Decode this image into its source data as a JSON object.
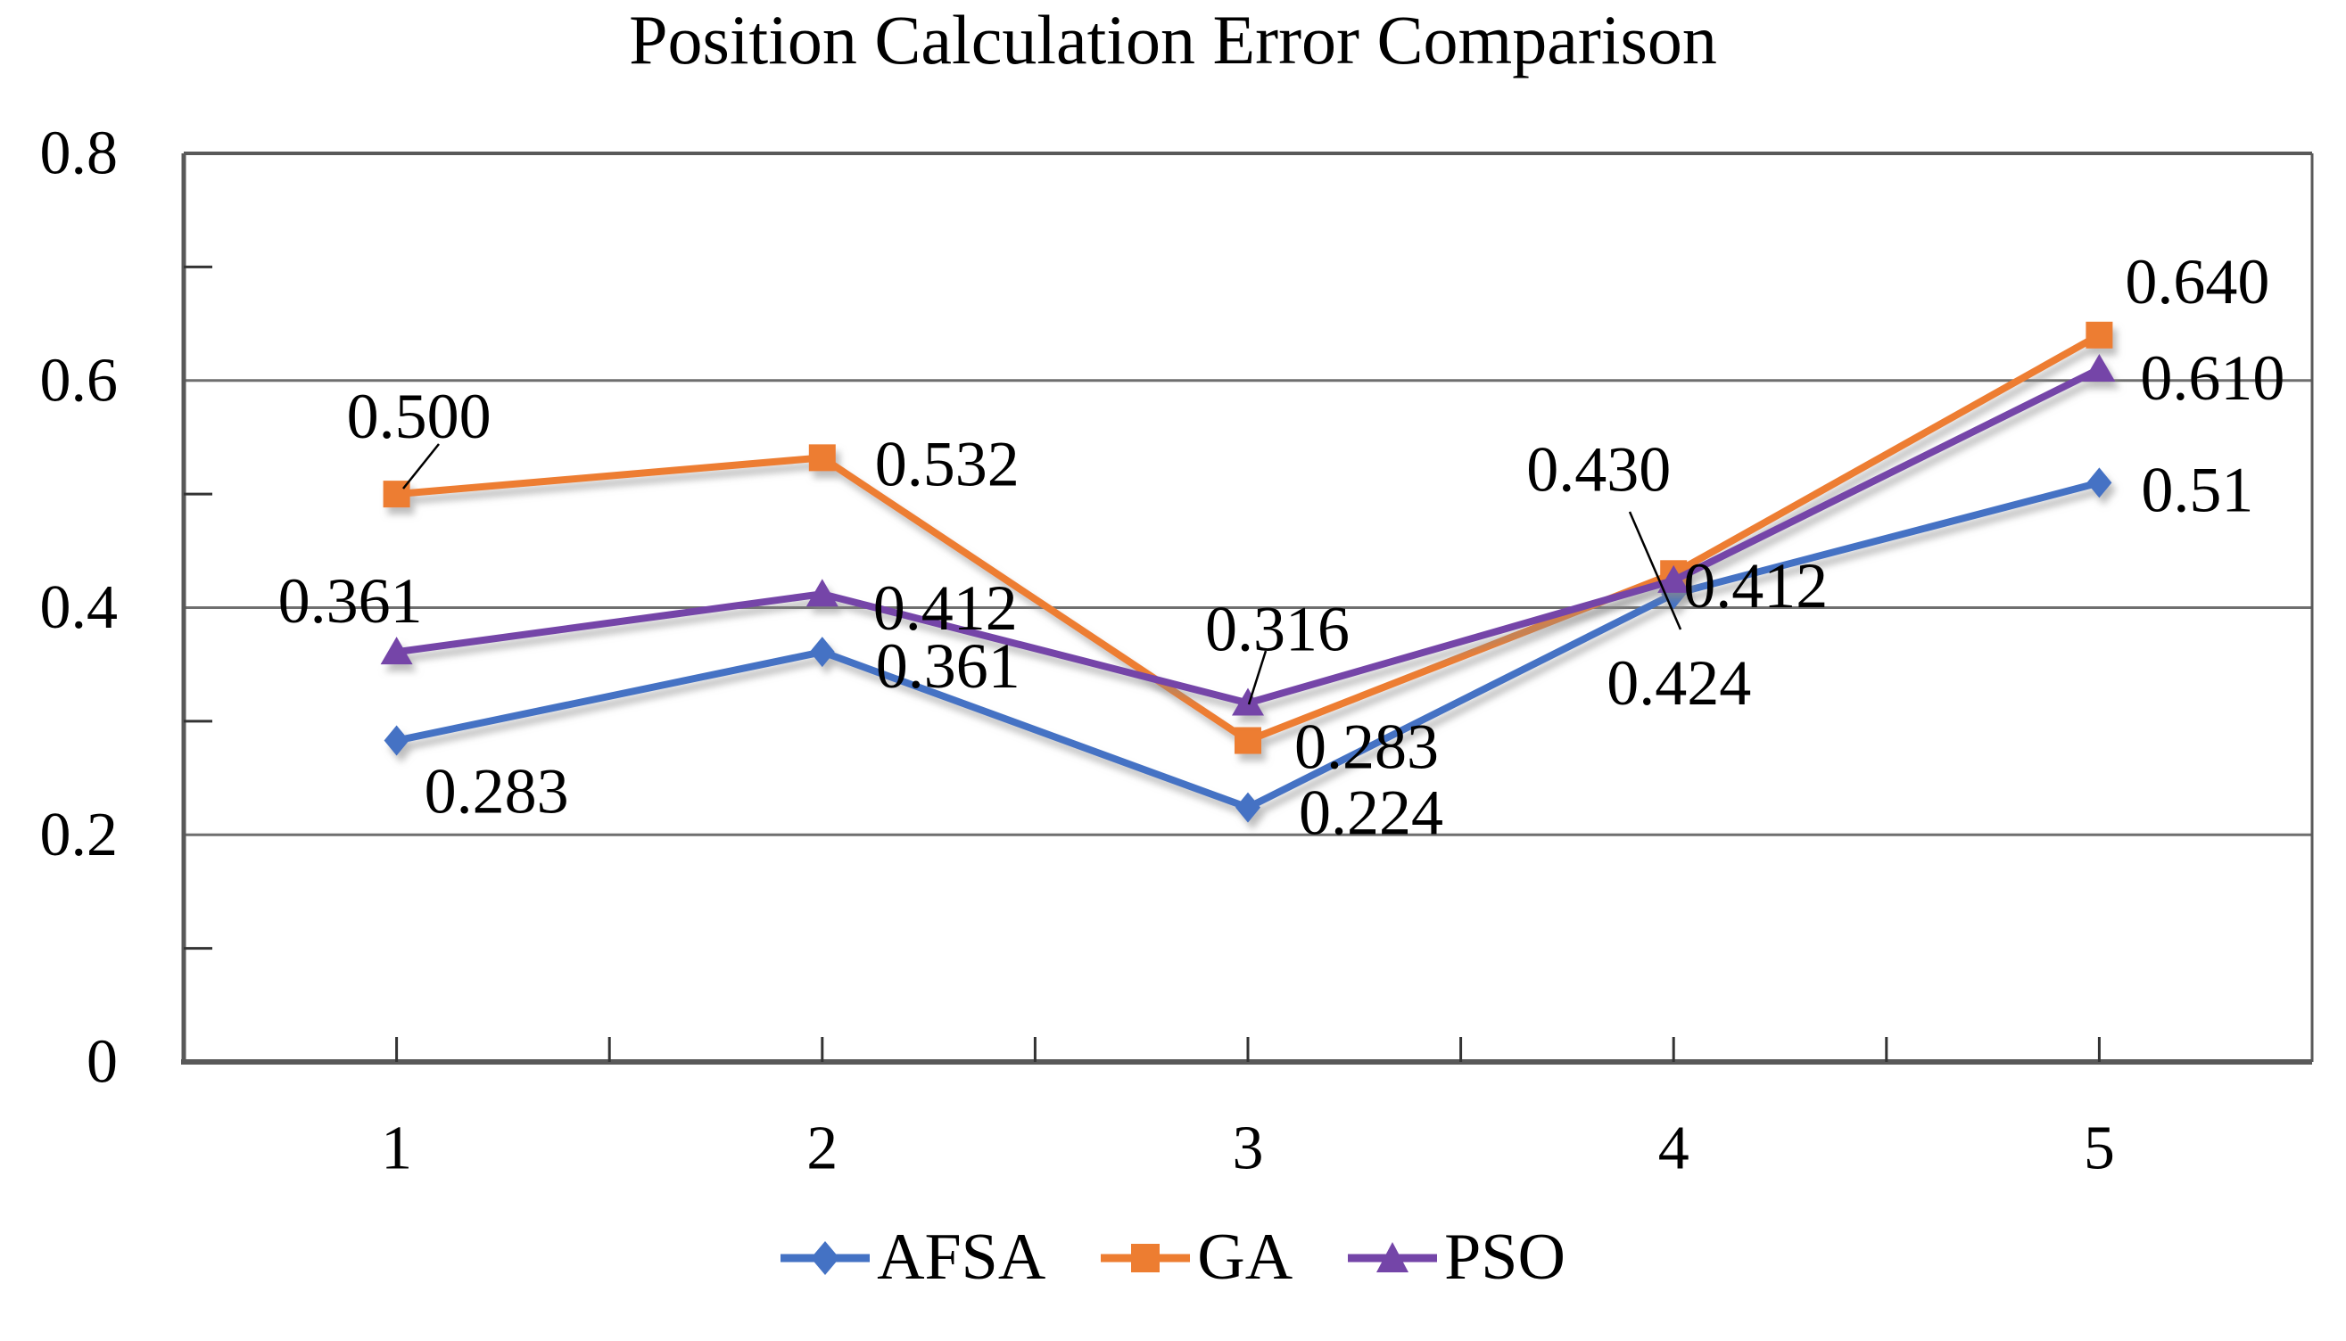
{
  "chart_data": {
    "type": "line",
    "title": "Position Calculation Error Comparison",
    "x": [
      1,
      2,
      3,
      4,
      5
    ],
    "x_tick_labels": [
      "1",
      "2",
      "3",
      "4",
      "5"
    ],
    "y_tick_labels": [
      "0",
      "0.2",
      "0.4",
      "0.6",
      "0.8"
    ],
    "y_tick_values": [
      0,
      0.2,
      0.4,
      0.6,
      0.8
    ],
    "ylim": [
      0,
      0.8
    ],
    "grid": "horizontal-major",
    "legend_position": "bottom-center",
    "axis_color": "#595959",
    "gridline_color": "#6F6F6F",
    "tick_color": "#333333",
    "label_color": "#000000",
    "series": [
      {
        "name": "AFSA",
        "marker": "diamond",
        "color": "#4472C4",
        "values": [
          0.283,
          0.361,
          0.224,
          0.412,
          0.51
        ],
        "data_labels": [
          "0.283",
          "0.361",
          "0.224",
          "0.412",
          "0.51"
        ]
      },
      {
        "name": "GA",
        "marker": "square",
        "color": "#ED7D31",
        "values": [
          0.5,
          0.532,
          0.283,
          0.43,
          0.64
        ],
        "data_labels": [
          "0.500",
          "0.532",
          "0.283",
          "0.430",
          "0.640"
        ]
      },
      {
        "name": "PSO",
        "marker": "triangle",
        "color": "#7445A8",
        "values": [
          0.361,
          0.412,
          0.316,
          0.424,
          0.61
        ],
        "data_labels": [
          "0.361",
          "0.412",
          "0.316",
          "0.424",
          "0.610"
        ]
      }
    ]
  }
}
